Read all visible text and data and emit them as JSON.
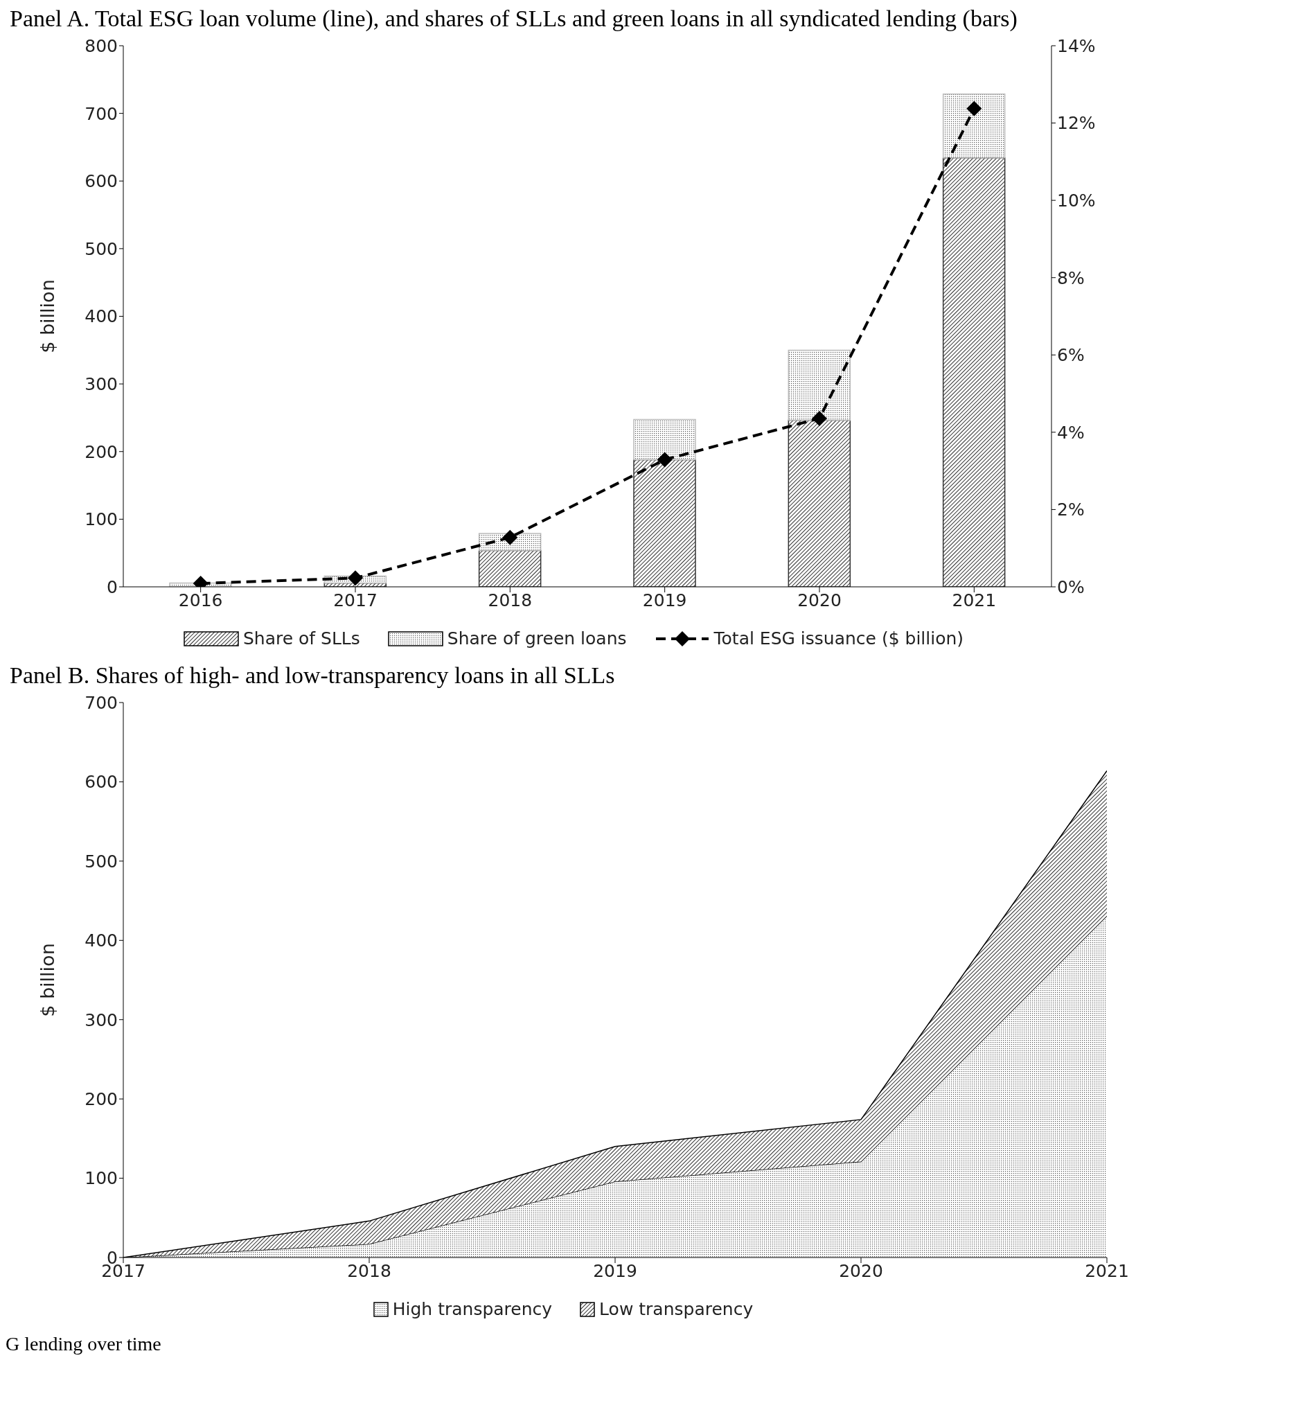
{
  "chart_data": [
    {
      "type": "bar",
      "title": "Panel A. Total ESG loan volume (line), and shares of SLLs and green loans in all syndicated lending (bars)",
      "ylabel": "$ billion",
      "categories": [
        "2016",
        "2017",
        "2018",
        "2019",
        "2020",
        "2021"
      ],
      "stacked": true,
      "series": [
        {
          "name": "Share of SLLs",
          "color": "#333333",
          "axis": "y2",
          "values": [
            null,
            0.1,
            0.94,
            3.29,
            4.31,
            11.1
          ]
        },
        {
          "name": "Share of green loans",
          "color": "#bbbbbb",
          "axis": "y2",
          "values": [
            0.1,
            0.18,
            0.44,
            1.04,
            1.81,
            1.65
          ]
        },
        {
          "name": "Total ESG issuance ($ billion)",
          "type": "line",
          "color": "#000000",
          "marker": "diamond",
          "line_style": "dashed",
          "values": [
            5,
            13,
            73,
            188,
            249,
            707
          ]
        }
      ],
      "ylim": [
        0,
        800
      ],
      "yticks": [
        0,
        100,
        200,
        300,
        400,
        500,
        600,
        700,
        800
      ],
      "y2lim": [
        0,
        14
      ],
      "y2ticks": [
        {
          "value": 0,
          "label": "0%"
        },
        {
          "value": 2,
          "label": "2%"
        },
        {
          "value": 4,
          "label": "4%"
        },
        {
          "value": 6,
          "label": "6%"
        },
        {
          "value": 8,
          "label": "8%"
        },
        {
          "value": 10,
          "label": "10%"
        },
        {
          "value": 12,
          "label": "12%"
        },
        {
          "value": 14,
          "label": "14%"
        }
      ],
      "legend": "bottom"
    },
    {
      "type": "area",
      "title": "Panel B. Shares of high- and low-transparency loans in all SLLs",
      "ylabel": "$ billion",
      "x": [
        2017,
        2018,
        2019,
        2020,
        2021
      ],
      "stacked": true,
      "series": [
        {
          "name": "High transparency",
          "color": "#bbbbbb",
          "values": [
            0,
            17,
            96,
            121,
            431
          ]
        },
        {
          "name": "Low transparency",
          "color": "#333333",
          "values": [
            0,
            29,
            44,
            53,
            183
          ]
        }
      ],
      "xlim": [
        2017,
        2021
      ],
      "xticks": [
        2017,
        2018,
        2019,
        2020,
        2021
      ],
      "ylim": [
        0,
        700
      ],
      "yticks": [
        0,
        100,
        200,
        300,
        400,
        500,
        600,
        700
      ],
      "legend": "bottom",
      "annotations": [
        "G lending over time"
      ]
    }
  ]
}
